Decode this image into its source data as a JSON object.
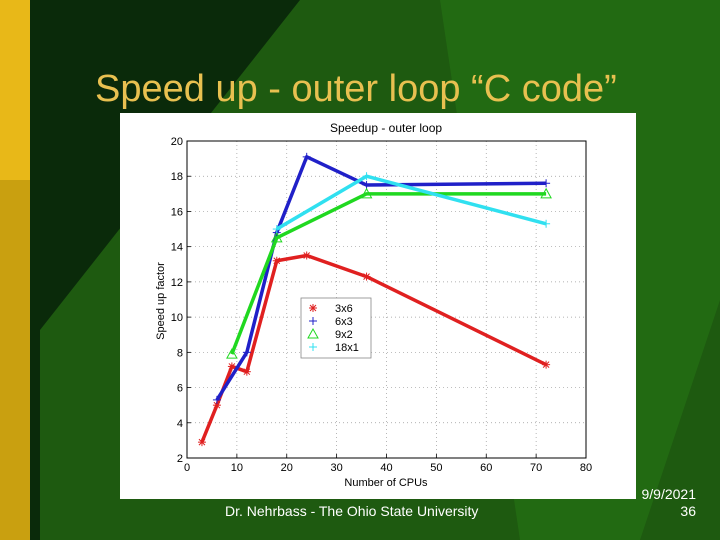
{
  "slide": {
    "title": "Speed up - outer loop “C code”",
    "author": "Dr. Nehrbass - The Ohio State University",
    "date": "9/9/2021",
    "page_number": "36",
    "colors": {
      "background_dark": "#0a2a0a",
      "background_light": "#1e5a10",
      "title": "#e8c050",
      "accent_bar": "#e8b818"
    }
  },
  "chart_data": {
    "type": "line",
    "title": "Speedup - outer loop",
    "xlabel": "Number of CPUs",
    "ylabel": "Speed up factor",
    "xlim": [
      0,
      80
    ],
    "ylim": [
      2,
      20
    ],
    "xticks": [
      "0",
      "10",
      "20",
      "30",
      "40",
      "50",
      "60",
      "70",
      "80"
    ],
    "yticks": [
      "2",
      "4",
      "6",
      "8",
      "10",
      "12",
      "14",
      "16",
      "18",
      "20"
    ],
    "grid": true,
    "legend_position": "center-left",
    "series": [
      {
        "name": "3x6",
        "color": "#e02020",
        "marker": "star",
        "x": [
          3,
          6,
          9,
          12,
          18,
          24,
          36,
          72
        ],
        "y": [
          2.9,
          5.0,
          7.2,
          6.9,
          13.2,
          13.5,
          12.3,
          7.3
        ]
      },
      {
        "name": "6x3",
        "color": "#2020c8",
        "marker": "plus",
        "x": [
          6,
          12,
          18,
          24,
          36,
          72
        ],
        "y": [
          5.3,
          8.0,
          14.8,
          19.1,
          17.5,
          17.6
        ]
      },
      {
        "name": "9x2",
        "color": "#20d820",
        "marker": "triangle",
        "x": [
          9,
          18,
          36,
          72
        ],
        "y": [
          7.9,
          14.5,
          17.0,
          17.0
        ]
      },
      {
        "name": "18x1",
        "color": "#30e0f0",
        "marker": "plus",
        "x": [
          18,
          36,
          72
        ],
        "y": [
          15.0,
          18.0,
          15.3
        ]
      }
    ]
  }
}
